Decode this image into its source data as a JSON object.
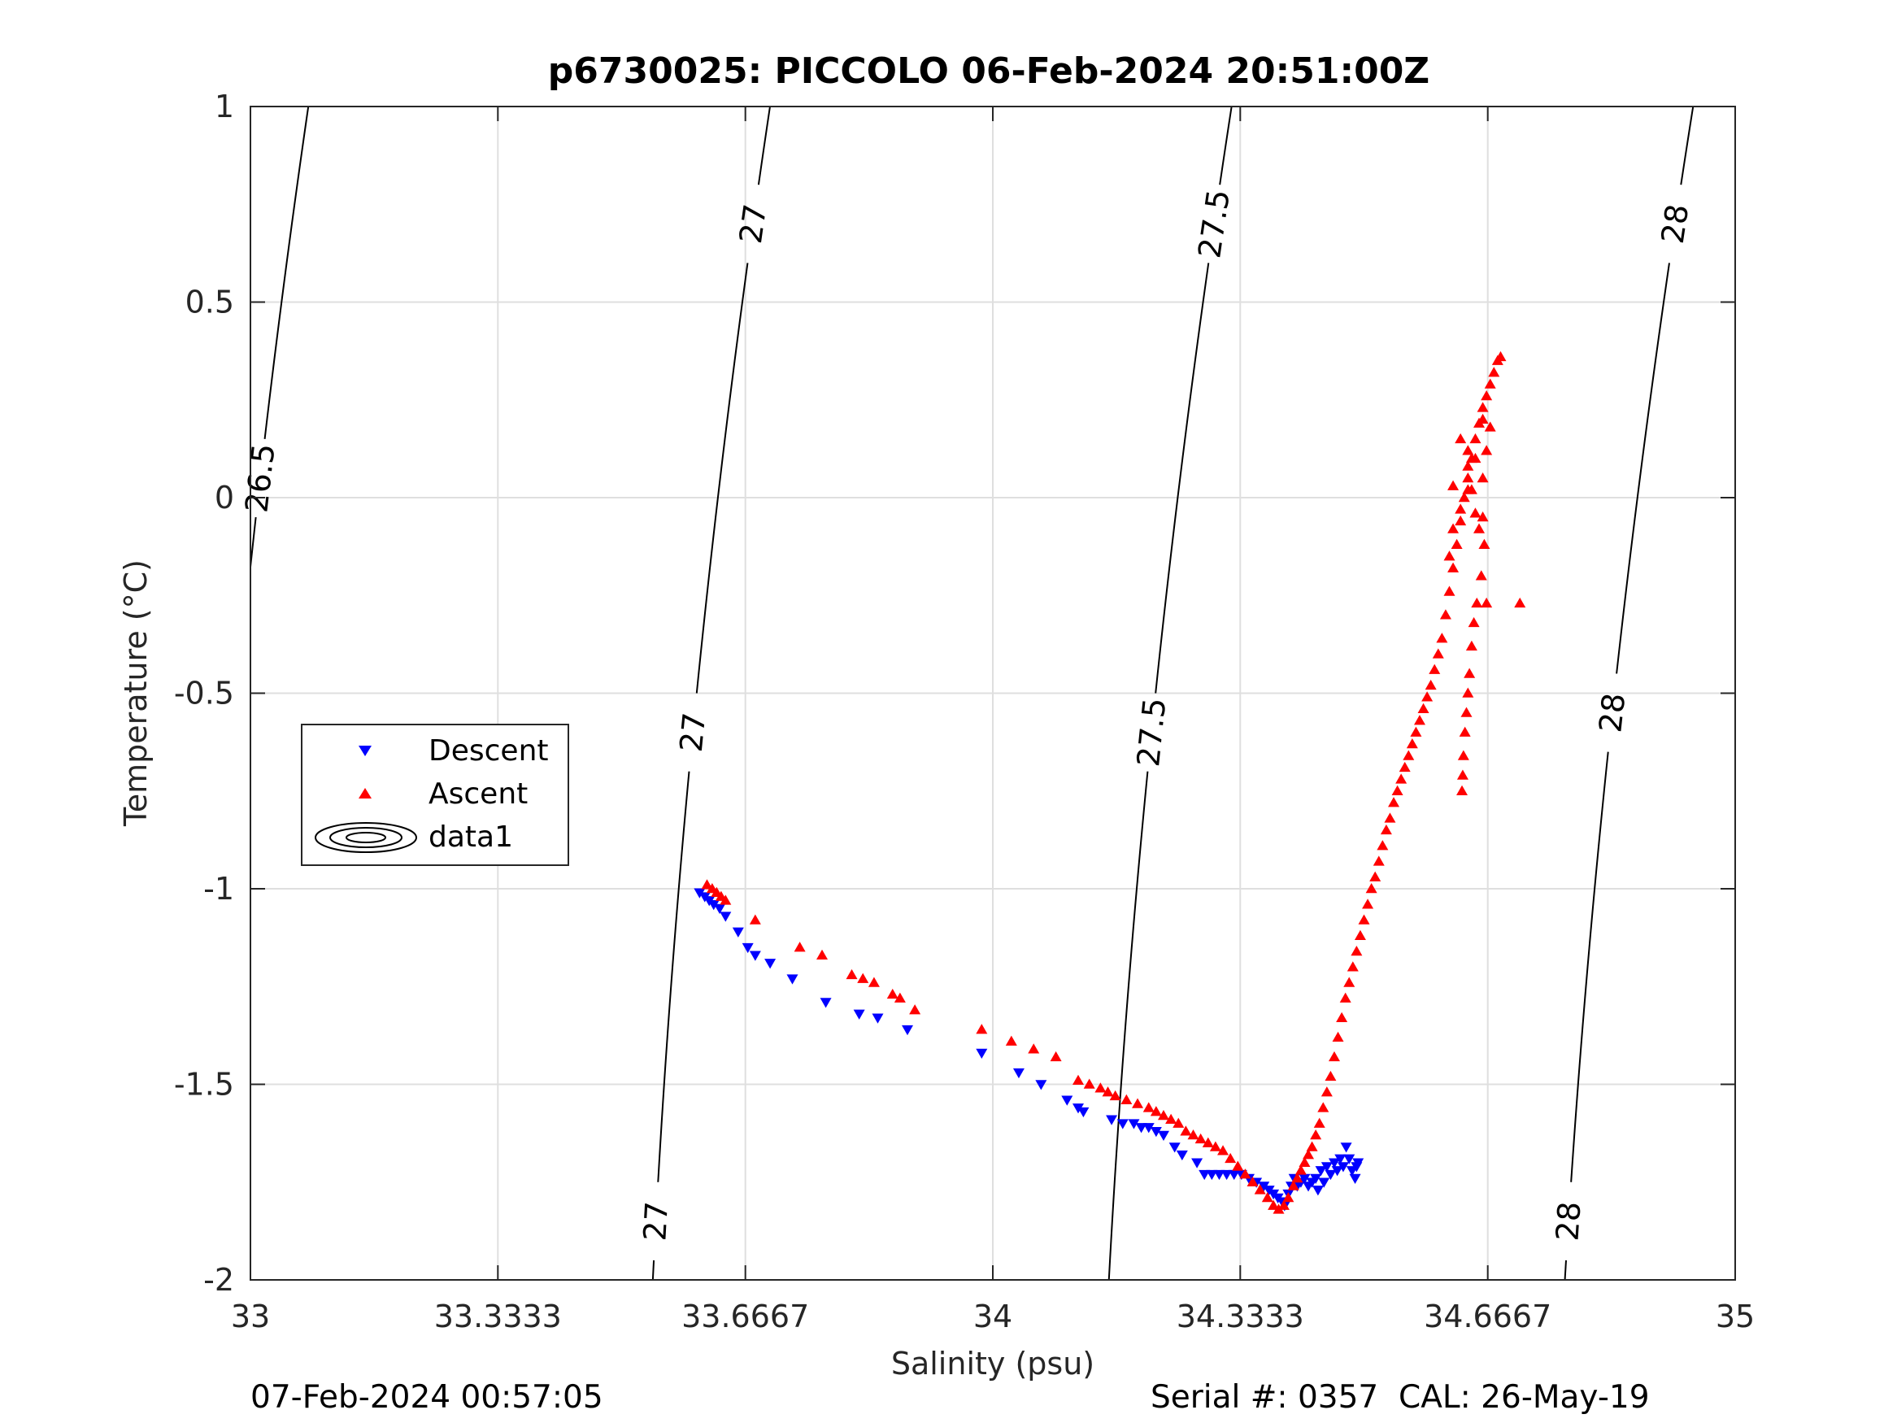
{
  "chart_data": {
    "type": "scatter",
    "title": "p6730025: PICCOLO 06-Feb-2024 20:51:00Z",
    "xlabel": "Salinity (psu)",
    "ylabel": "Temperature (°C)",
    "xlim": [
      33,
      35
    ],
    "ylim": [
      -2,
      1
    ],
    "grid": true,
    "x_ticks": [
      33,
      33.3333,
      33.6667,
      34,
      34.3333,
      34.6667,
      35
    ],
    "x_tick_labels": [
      "33",
      "33.3333",
      "33.6667",
      "34",
      "34.3333",
      "34.6667",
      "35"
    ],
    "y_ticks": [
      -2,
      -1.5,
      -1,
      -0.5,
      0,
      0.5,
      1
    ],
    "y_tick_labels": [
      "-2",
      "-1.5",
      "-1",
      "-0.5",
      "0",
      "0.5",
      "1"
    ],
    "legend": {
      "location": "left-middle",
      "entries": [
        "Descent",
        "Ascent",
        "data1"
      ]
    },
    "series": [
      {
        "name": "Descent",
        "marker": "triangle-down",
        "color": "#0000ff",
        "points": [
          [
            33.605,
            -1.01
          ],
          [
            33.612,
            -1.02
          ],
          [
            33.618,
            -1.03
          ],
          [
            33.624,
            -1.04
          ],
          [
            33.632,
            -1.05
          ],
          [
            33.64,
            -1.07
          ],
          [
            33.657,
            -1.11
          ],
          [
            33.67,
            -1.15
          ],
          [
            33.68,
            -1.17
          ],
          [
            33.7,
            -1.19
          ],
          [
            33.73,
            -1.23
          ],
          [
            33.775,
            -1.29
          ],
          [
            33.82,
            -1.32
          ],
          [
            33.845,
            -1.33
          ],
          [
            33.885,
            -1.36
          ],
          [
            33.985,
            -1.42
          ],
          [
            34.035,
            -1.47
          ],
          [
            34.065,
            -1.5
          ],
          [
            34.1,
            -1.54
          ],
          [
            34.115,
            -1.56
          ],
          [
            34.122,
            -1.57
          ],
          [
            34.16,
            -1.59
          ],
          [
            34.175,
            -1.6
          ],
          [
            34.19,
            -1.6
          ],
          [
            34.2,
            -1.61
          ],
          [
            34.21,
            -1.61
          ],
          [
            34.22,
            -1.62
          ],
          [
            34.23,
            -1.63
          ],
          [
            34.245,
            -1.66
          ],
          [
            34.255,
            -1.68
          ],
          [
            34.275,
            -1.7
          ],
          [
            34.285,
            -1.73
          ],
          [
            34.295,
            -1.73
          ],
          [
            34.305,
            -1.73
          ],
          [
            34.315,
            -1.73
          ],
          [
            34.325,
            -1.73
          ],
          [
            34.335,
            -1.73
          ],
          [
            34.345,
            -1.74
          ],
          [
            34.355,
            -1.75
          ],
          [
            34.365,
            -1.76
          ],
          [
            34.372,
            -1.77
          ],
          [
            34.378,
            -1.78
          ],
          [
            34.384,
            -1.79
          ],
          [
            34.39,
            -1.8
          ],
          [
            34.393,
            -1.81
          ],
          [
            34.398,
            -1.78
          ],
          [
            34.402,
            -1.76
          ],
          [
            34.406,
            -1.74
          ],
          [
            34.41,
            -1.76
          ],
          [
            34.415,
            -1.75
          ],
          [
            34.42,
            -1.74
          ],
          [
            34.425,
            -1.76
          ],
          [
            34.43,
            -1.75
          ],
          [
            34.435,
            -1.74
          ],
          [
            34.438,
            -1.77
          ],
          [
            34.442,
            -1.72
          ],
          [
            34.446,
            -1.75
          ],
          [
            34.45,
            -1.71
          ],
          [
            34.455,
            -1.73
          ],
          [
            34.46,
            -1.7
          ],
          [
            34.464,
            -1.72
          ],
          [
            34.468,
            -1.69
          ],
          [
            34.472,
            -1.71
          ],
          [
            34.476,
            -1.66
          ],
          [
            34.48,
            -1.69
          ],
          [
            34.484,
            -1.72
          ],
          [
            34.488,
            -1.74
          ],
          [
            34.49,
            -1.71
          ],
          [
            34.492,
            -1.7
          ]
        ]
      },
      {
        "name": "Ascent",
        "marker": "triangle-up",
        "color": "#ff0000",
        "points": [
          [
            33.615,
            -0.99
          ],
          [
            33.622,
            -1.0
          ],
          [
            33.628,
            -1.01
          ],
          [
            33.634,
            -1.02
          ],
          [
            33.64,
            -1.03
          ],
          [
            33.68,
            -1.08
          ],
          [
            33.74,
            -1.15
          ],
          [
            33.77,
            -1.17
          ],
          [
            33.81,
            -1.22
          ],
          [
            33.825,
            -1.23
          ],
          [
            33.84,
            -1.24
          ],
          [
            33.865,
            -1.27
          ],
          [
            33.875,
            -1.28
          ],
          [
            33.895,
            -1.31
          ],
          [
            33.985,
            -1.36
          ],
          [
            34.025,
            -1.39
          ],
          [
            34.055,
            -1.41
          ],
          [
            34.085,
            -1.43
          ],
          [
            34.115,
            -1.49
          ],
          [
            34.13,
            -1.5
          ],
          [
            34.145,
            -1.51
          ],
          [
            34.155,
            -1.52
          ],
          [
            34.165,
            -1.53
          ],
          [
            34.18,
            -1.54
          ],
          [
            34.195,
            -1.55
          ],
          [
            34.21,
            -1.56
          ],
          [
            34.22,
            -1.57
          ],
          [
            34.23,
            -1.58
          ],
          [
            34.24,
            -1.59
          ],
          [
            34.25,
            -1.6
          ],
          [
            34.26,
            -1.62
          ],
          [
            34.27,
            -1.63
          ],
          [
            34.28,
            -1.64
          ],
          [
            34.29,
            -1.65
          ],
          [
            34.3,
            -1.66
          ],
          [
            34.31,
            -1.67
          ],
          [
            34.32,
            -1.69
          ],
          [
            34.33,
            -1.71
          ],
          [
            34.34,
            -1.73
          ],
          [
            34.35,
            -1.75
          ],
          [
            34.36,
            -1.77
          ],
          [
            34.37,
            -1.79
          ],
          [
            34.378,
            -1.81
          ],
          [
            34.385,
            -1.82
          ],
          [
            34.392,
            -1.81
          ],
          [
            34.398,
            -1.79
          ],
          [
            34.405,
            -1.76
          ],
          [
            34.41,
            -1.74
          ],
          [
            34.415,
            -1.72
          ],
          [
            34.42,
            -1.7
          ],
          [
            34.425,
            -1.68
          ],
          [
            34.43,
            -1.66
          ],
          [
            34.435,
            -1.63
          ],
          [
            34.44,
            -1.6
          ],
          [
            34.445,
            -1.56
          ],
          [
            34.45,
            -1.52
          ],
          [
            34.455,
            -1.48
          ],
          [
            34.46,
            -1.43
          ],
          [
            34.465,
            -1.38
          ],
          [
            34.47,
            -1.33
          ],
          [
            34.475,
            -1.28
          ],
          [
            34.48,
            -1.24
          ],
          [
            34.485,
            -1.2
          ],
          [
            34.49,
            -1.16
          ],
          [
            34.495,
            -1.12
          ],
          [
            34.5,
            -1.08
          ],
          [
            34.505,
            -1.04
          ],
          [
            34.51,
            -1.0
          ],
          [
            34.515,
            -0.97
          ],
          [
            34.52,
            -0.93
          ],
          [
            34.525,
            -0.89
          ],
          [
            34.53,
            -0.85
          ],
          [
            34.535,
            -0.82
          ],
          [
            34.54,
            -0.78
          ],
          [
            34.545,
            -0.75
          ],
          [
            34.55,
            -0.72
          ],
          [
            34.555,
            -0.69
          ],
          [
            34.56,
            -0.66
          ],
          [
            34.565,
            -0.63
          ],
          [
            34.57,
            -0.6
          ],
          [
            34.575,
            -0.57
          ],
          [
            34.58,
            -0.54
          ],
          [
            34.585,
            -0.51
          ],
          [
            34.59,
            -0.48
          ],
          [
            34.595,
            -0.44
          ],
          [
            34.6,
            -0.4
          ],
          [
            34.605,
            -0.36
          ],
          [
            34.61,
            -0.3
          ],
          [
            34.615,
            -0.24
          ],
          [
            34.62,
            -0.18
          ],
          [
            34.625,
            -0.12
          ],
          [
            34.63,
            -0.06
          ],
          [
            34.635,
            0.0
          ],
          [
            34.64,
            0.05
          ],
          [
            34.645,
            0.1
          ],
          [
            34.65,
            0.15
          ],
          [
            34.655,
            0.19
          ],
          [
            34.66,
            0.23
          ],
          [
            34.665,
            0.26
          ],
          [
            34.67,
            0.29
          ],
          [
            34.675,
            0.32
          ],
          [
            34.68,
            0.35
          ],
          [
            34.684,
            0.36
          ],
          [
            34.63,
            0.15
          ],
          [
            34.64,
            0.08
          ],
          [
            34.645,
            0.02
          ],
          [
            34.65,
            -0.04
          ],
          [
            34.655,
            -0.08
          ],
          [
            34.66,
            0.05
          ],
          [
            34.662,
            -0.12
          ],
          [
            34.658,
            -0.2
          ],
          [
            34.652,
            -0.27
          ],
          [
            34.648,
            -0.32
          ],
          [
            34.645,
            -0.38
          ],
          [
            34.642,
            -0.45
          ],
          [
            34.64,
            -0.5
          ],
          [
            34.638,
            -0.55
          ],
          [
            34.636,
            -0.6
          ],
          [
            34.634,
            -0.66
          ],
          [
            34.633,
            -0.71
          ],
          [
            34.632,
            -0.75
          ],
          [
            34.67,
            0.18
          ],
          [
            34.665,
            0.12
          ],
          [
            34.66,
            0.2
          ],
          [
            34.65,
            0.1
          ],
          [
            34.64,
            0.02
          ],
          [
            34.63,
            -0.03
          ],
          [
            34.62,
            -0.08
          ],
          [
            34.615,
            -0.15
          ],
          [
            34.62,
            0.03
          ],
          [
            34.64,
            0.12
          ],
          [
            34.66,
            -0.05
          ],
          [
            34.665,
            -0.27
          ],
          [
            34.71,
            -0.27
          ]
        ]
      }
    ],
    "isopycnals": [
      {
        "label": "26.5",
        "value": 26.5
      },
      {
        "label": "27",
        "value": 27
      },
      {
        "label": "27.5",
        "value": 27.5
      },
      {
        "label": "28",
        "value": 28
      }
    ]
  },
  "footer": {
    "timestamp": "07-Feb-2024 00:57:05",
    "serial": "Serial #: 0357  CAL: 26-May-19"
  },
  "colors": {
    "descent": "#0000ff",
    "ascent": "#ff0000",
    "grid": "#dfdfdf",
    "axis": "#262626"
  }
}
